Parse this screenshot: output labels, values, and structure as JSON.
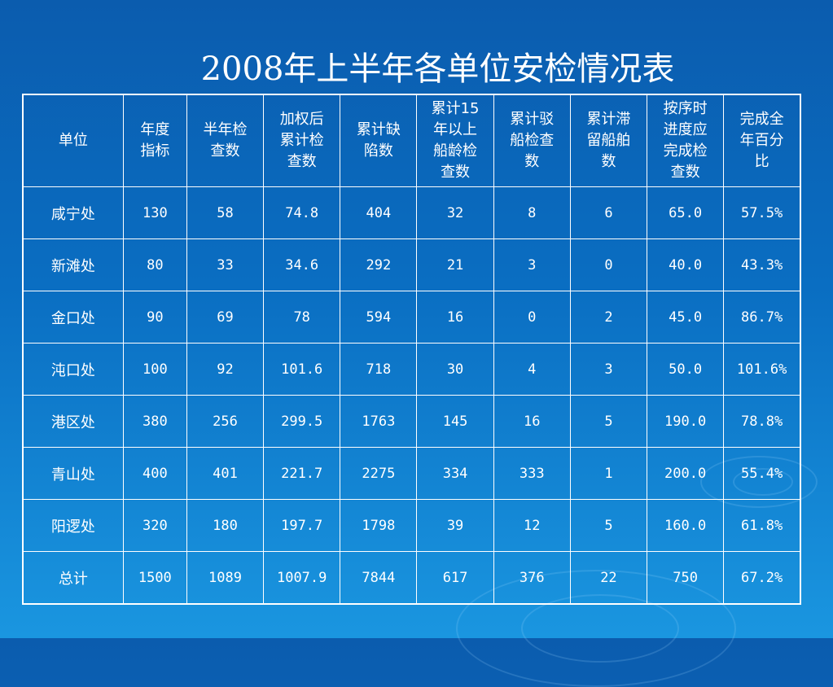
{
  "title": "2008年上半年各单位安检情况表",
  "table": {
    "headers": [
      "单位",
      "年度指标",
      "半年检查数",
      "加权后累计检查数",
      "累计缺陷数",
      "累计15年以上船龄检查数",
      "累计驳船检查数",
      "累计滞留船舶数",
      "按序时进度应完成检查数",
      "完成全年百分比"
    ],
    "rows": [
      [
        "咸宁处",
        "130",
        "58",
        "74.8",
        "404",
        "32",
        "8",
        "6",
        "65.0",
        "57.5%"
      ],
      [
        "新滩处",
        "80",
        "33",
        "34.6",
        "292",
        "21",
        "3",
        "0",
        "40.0",
        "43.3%"
      ],
      [
        "金口处",
        "90",
        "69",
        "78",
        "594",
        "16",
        "0",
        "2",
        "45.0",
        "86.7%"
      ],
      [
        "沌口处",
        "100",
        "92",
        "101.6",
        "718",
        "30",
        "4",
        "3",
        "50.0",
        "101.6%"
      ],
      [
        "港区处",
        "380",
        "256",
        "299.5",
        "1763",
        "145",
        "16",
        "5",
        "190.0",
        "78.8%"
      ],
      [
        "青山处",
        "400",
        "401",
        "221.7",
        "2275",
        "334",
        "333",
        "1",
        "200.0",
        "55.4%"
      ],
      [
        "阳逻处",
        "320",
        "180",
        "197.7",
        "1798",
        "39",
        "12",
        "5",
        "160.0",
        "61.8%"
      ],
      [
        "总计",
        "1500",
        "1089",
        "1007.9",
        "7844",
        "617",
        "376",
        "22",
        "750",
        "67.2%"
      ]
    ]
  }
}
